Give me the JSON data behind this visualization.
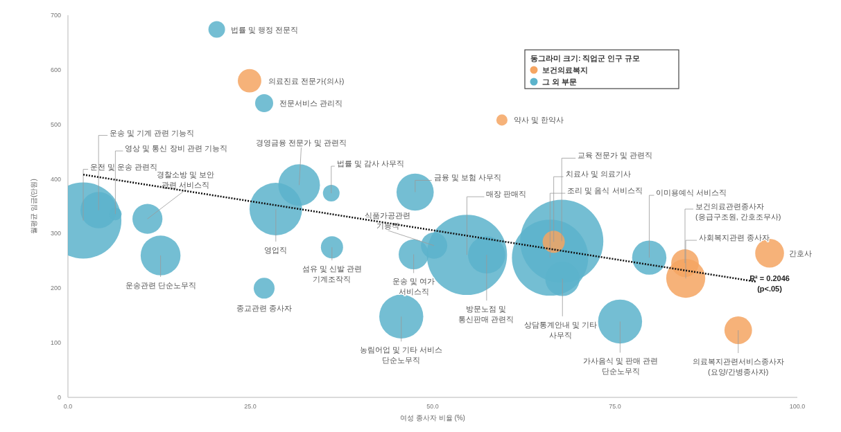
{
  "chart_data": {
    "type": "bubble",
    "xlabel": "여성 종사자 비율 (%)",
    "ylabel": "월평균 임금(만원)",
    "legend_title": "동그라미 크기: 직업군 인구 규모",
    "legend": "top right",
    "xlim": [
      0,
      100
    ],
    "ylim": [
      0,
      700
    ],
    "xticks": [
      {
        "value": 0,
        "label": "0.0"
      },
      {
        "value": 25,
        "label": "25.0"
      },
      {
        "value": 50,
        "label": "50.0"
      },
      {
        "value": 75,
        "label": "75.0"
      },
      {
        "value": 100,
        "label": "100.0"
      }
    ],
    "yticks": [
      0,
      100,
      200,
      300,
      400,
      500,
      600,
      700
    ],
    "series": [
      {
        "name": "보건의료복지",
        "color": "#f5a562",
        "x": [
          24.9,
          59.5,
          66.6,
          84.6,
          84.7,
          96.2,
          91.9
        ],
        "values": [
          580,
          508,
          285,
          246,
          218,
          264,
          123
        ],
        "sizes": [
          0.08,
          0.018,
          0.071,
          0.11,
          0.22,
          0.12,
          0.11
        ]
      },
      {
        "name": "그 외 부문",
        "color": "#5cb3cb",
        "x": [
          20.4,
          26.9,
          31.7,
          36.1,
          47.6,
          2.1,
          4.2,
          6.5,
          10.9,
          12.7,
          28.5,
          26.9,
          36.2,
          47.4,
          50.2,
          54.7,
          57.4,
          45.7,
          67.7,
          66.1,
          67.8,
          79.7,
          75.7
        ],
        "values": [
          674,
          539,
          389,
          374,
          376,
          324,
          343,
          336,
          327,
          260,
          345,
          200,
          275,
          262,
          278,
          261,
          261,
          148,
          286,
          256,
          217,
          256,
          139
        ],
        "sizes": [
          0.04,
          0.047,
          0.25,
          0.04,
          0.2,
          0.84,
          0.19,
          0.023,
          0.13,
          0.23,
          0.4,
          0.063,
          0.071,
          0.13,
          0.1,
          0.93,
          0.2,
          0.28,
          1,
          0.84,
          0.17,
          0.17,
          0.28
        ]
      },
      {
        "type": "line",
        "color": "#111111",
        "line_style": "dotted",
        "x": [
          2.1,
          94.3
        ],
        "values": [
          408,
          212
        ]
      }
    ],
    "annotations": [
      {
        "text": "의료진료 전문가(의사)",
        "x": 24.9,
        "y": 580
      },
      {
        "text": "약사 및 한약사",
        "x": 59.5,
        "y": 508
      },
      {
        "text": "치료사 및 의료기사",
        "x": 66.6,
        "y": 285
      },
      {
        "text": "보건의료관련종사자\n(응급구조원, 간호조무사)",
        "x": 84.6,
        "y": 246
      },
      {
        "text": "사회복지관련 종사자",
        "x": 84.7,
        "y": 218
      },
      {
        "text": "간호사",
        "x": 96.2,
        "y": 264
      },
      {
        "text": "의료복지관련서비스종사자\n(요양/간병종사자)",
        "x": 91.9,
        "y": 123
      },
      {
        "text": "법률 및 행정 전문직",
        "x": 20.4,
        "y": 674
      },
      {
        "text": "전문서비스 관리직",
        "x": 26.9,
        "y": 539
      },
      {
        "text": "경영금융 전문가 및 관련직",
        "x": 31.7,
        "y": 389
      },
      {
        "text": "법률 및 감사 사무직",
        "x": 36.1,
        "y": 374
      },
      {
        "text": "금융 및 보험 사무직",
        "x": 47.6,
        "y": 376
      },
      {
        "text": "운전 및 운송 관련직",
        "x": 2.1,
        "y": 324
      },
      {
        "text": "운송 및 기계 관련 기능직",
        "x": 4.2,
        "y": 343
      },
      {
        "text": "영상 및 통신 장비 관련 기능직",
        "x": 6.5,
        "y": 336
      },
      {
        "text": "경찰소방 및 보안\n관련 서비스직",
        "x": 10.9,
        "y": 327
      },
      {
        "text": "운송관련 단순노무직",
        "x": 12.7,
        "y": 260
      },
      {
        "text": "영업직",
        "x": 28.5,
        "y": 345
      },
      {
        "text": "종교관련 종사자",
        "x": 26.9,
        "y": 200
      },
      {
        "text": "섬유 및 신발 관련\n기계조작직",
        "x": 36.2,
        "y": 275
      },
      {
        "text": "운송 및 여가\n서비스직",
        "x": 47.4,
        "y": 262
      },
      {
        "text": "식품가공관련\n기능직",
        "x": 50.2,
        "y": 278
      },
      {
        "text": "매장 판매직",
        "x": 54.7,
        "y": 261
      },
      {
        "text": "방문노점 및\n통신판매 관련직",
        "x": 57.4,
        "y": 261
      },
      {
        "text": "농림어업 및 기타 서비스\n단순노무직",
        "x": 45.7,
        "y": 148
      },
      {
        "text": "교육 전문가 및 관련직",
        "x": 67.7,
        "y": 286
      },
      {
        "text": "조리 및 음식 서비스직",
        "x": 66.1,
        "y": 256
      },
      {
        "text": "상담통계안내 및 기타\n사무직",
        "x": 67.8,
        "y": 217
      },
      {
        "text": "이미용예식 서비스직",
        "x": 79.7,
        "y": 256
      },
      {
        "text": "가사음식 및 판매 관련\n단순노무직",
        "x": 75.7,
        "y": 139
      },
      {
        "text": "R² = 0.2046\n(p<.05)",
        "x": 94.3,
        "y": 212
      }
    ]
  }
}
